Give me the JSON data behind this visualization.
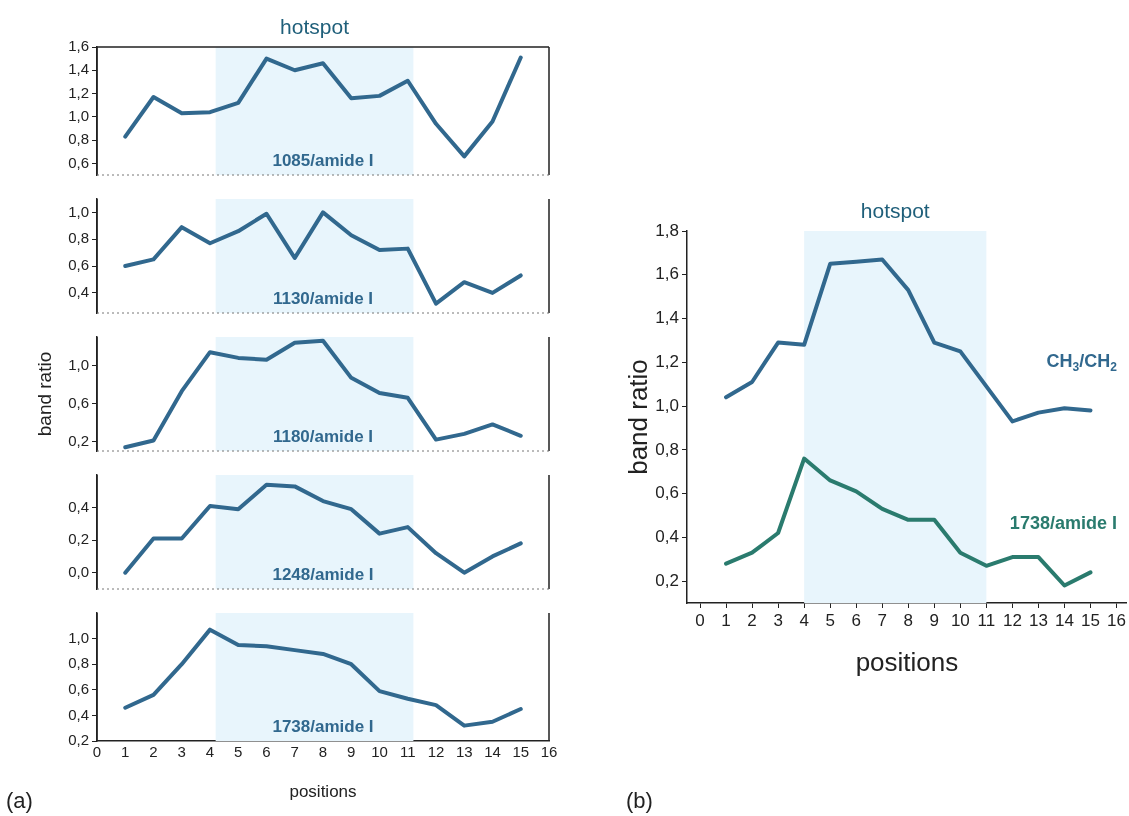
{
  "chart_data": [
    {
      "type": "line",
      "x": [
        1,
        2,
        3,
        4,
        5,
        6,
        7,
        8,
        9,
        10,
        11,
        12,
        13,
        14,
        15
      ],
      "series": [
        {
          "name": "1085/amide I",
          "color": "#31688e",
          "values": [
            0.83,
            1.17,
            1.03,
            1.04,
            1.12,
            1.5,
            1.4,
            1.46,
            1.16,
            1.18,
            1.31,
            0.94,
            0.66,
            0.96,
            1.51
          ]
        }
      ],
      "xlim": [
        0,
        16
      ],
      "ylim": [
        0.5,
        1.6
      ],
      "yticks": [
        {
          "value": 0.6,
          "label": "0,6"
        },
        {
          "value": 0.8,
          "label": "0,8"
        },
        {
          "value": 1.0,
          "label": "1,0"
        },
        {
          "value": 1.2,
          "label": "1,2"
        },
        {
          "value": 1.4,
          "label": "1,4"
        },
        {
          "value": 1.6,
          "label": "1,6"
        }
      ],
      "bands": [
        {
          "axis": "x",
          "from": 4.2,
          "to": 11.2,
          "label": "hotspot",
          "color": "#e8f5fc"
        }
      ],
      "tick_labels": "y"
    },
    {
      "type": "line",
      "x": [
        1,
        2,
        3,
        4,
        5,
        6,
        7,
        8,
        9,
        10,
        11,
        12,
        13,
        14,
        15
      ],
      "series": [
        {
          "name": "1130/amide I",
          "color": "#31688e",
          "values": [
            0.6,
            0.65,
            0.89,
            0.77,
            0.86,
            0.99,
            0.66,
            1.0,
            0.83,
            0.72,
            0.73,
            0.32,
            0.48,
            0.4,
            0.53
          ]
        }
      ],
      "xlim": [
        0,
        16
      ],
      "ylim": [
        0.25,
        1.1
      ],
      "yticks": [
        {
          "value": 0.4,
          "label": "0,4"
        },
        {
          "value": 0.6,
          "label": "0,6"
        },
        {
          "value": 0.8,
          "label": "0,8"
        },
        {
          "value": 1.0,
          "label": "1,0"
        }
      ],
      "bands": [
        {
          "axis": "x",
          "from": 4.2,
          "to": 11.2,
          "label": null,
          "color": "#e8f5fc"
        }
      ],
      "tick_labels": "y"
    },
    {
      "type": "line",
      "x": [
        1,
        2,
        3,
        4,
        5,
        6,
        7,
        8,
        9,
        10,
        11,
        12,
        13,
        14,
        15
      ],
      "ylabel": "band ratio",
      "series": [
        {
          "name": "1180/amide I",
          "color": "#31688e",
          "values": [
            0.14,
            0.21,
            0.73,
            1.14,
            1.08,
            1.06,
            1.24,
            1.26,
            0.87,
            0.71,
            0.66,
            0.22,
            0.28,
            0.38,
            0.26
          ]
        }
      ],
      "xlim": [
        0,
        16
      ],
      "ylim": [
        0.1,
        1.3
      ],
      "yticks": [
        {
          "value": 0.2,
          "label": "0,2"
        },
        {
          "value": 0.6,
          "label": "0,6"
        },
        {
          "value": 1.0,
          "label": "1,0"
        }
      ],
      "bands": [
        {
          "axis": "x",
          "from": 4.2,
          "to": 11.2,
          "label": null,
          "color": "#e8f5fc"
        }
      ],
      "tick_labels": "y"
    },
    {
      "type": "line",
      "x": [
        1,
        2,
        3,
        4,
        5,
        6,
        7,
        8,
        9,
        10,
        11,
        12,
        13,
        14,
        15
      ],
      "series": [
        {
          "name": "1248/amide I",
          "color": "#31688e",
          "values": [
            0.0,
            0.21,
            0.21,
            0.41,
            0.39,
            0.54,
            0.53,
            0.44,
            0.39,
            0.24,
            0.28,
            0.12,
            0.0,
            0.1,
            0.18
          ]
        }
      ],
      "xlim": [
        0,
        16
      ],
      "ylim": [
        -0.1,
        0.6
      ],
      "yticks": [
        {
          "value": 0.0,
          "label": "0,0"
        },
        {
          "value": 0.2,
          "label": "0,2"
        },
        {
          "value": 0.4,
          "label": "0,4"
        }
      ],
      "bands": [
        {
          "axis": "x",
          "from": 4.2,
          "to": 11.2,
          "label": null,
          "color": "#e8f5fc"
        }
      ],
      "tick_labels": "y"
    },
    {
      "type": "line",
      "x": [
        1,
        2,
        3,
        4,
        5,
        6,
        7,
        8,
        9,
        10,
        11,
        12,
        13,
        14,
        15
      ],
      "xlabel": "positions",
      "series": [
        {
          "name": "1738/amide I",
          "color": "#31688e",
          "values": [
            0.46,
            0.56,
            0.8,
            1.07,
            0.95,
            0.94,
            0.91,
            0.88,
            0.8,
            0.59,
            0.53,
            0.48,
            0.32,
            0.35,
            0.45
          ]
        }
      ],
      "xlim": [
        0,
        16
      ],
      "xticks": [
        0,
        1,
        2,
        3,
        4,
        5,
        6,
        7,
        8,
        9,
        10,
        11,
        12,
        13,
        14,
        15,
        16
      ],
      "ylim": [
        0.2,
        1.2
      ],
      "yticks": [
        {
          "value": 0.2,
          "label": "0,2"
        },
        {
          "value": 0.4,
          "label": "0,4"
        },
        {
          "value": 0.6,
          "label": "0,6"
        },
        {
          "value": 0.8,
          "label": "0,8"
        },
        {
          "value": 1.0,
          "label": "1,0"
        }
      ],
      "bands": [
        {
          "axis": "x",
          "from": 4.2,
          "to": 11.2,
          "label": null,
          "color": "#e8f5fc"
        }
      ],
      "annotations": [
        "(a)"
      ]
    },
    {
      "type": "line",
      "x": [
        1,
        2,
        3,
        4,
        5,
        6,
        7,
        8,
        9,
        10,
        11,
        12,
        13,
        14,
        15
      ],
      "xlabel": "positions",
      "ylabel": "band ratio",
      "series": [
        {
          "name": "CH$_{3}$/CH$_{2}$",
          "color": "#31688e",
          "values": [
            1.04,
            1.11,
            1.29,
            1.28,
            1.65,
            1.66,
            1.67,
            1.53,
            1.29,
            1.25,
            1.09,
            0.93,
            0.97,
            0.99,
            0.98
          ]
        },
        {
          "name": "1738/amide I",
          "color": "#2a7b6e",
          "values": [
            0.28,
            0.33,
            0.42,
            0.76,
            0.66,
            0.61,
            0.53,
            0.48,
            0.48,
            0.33,
            0.27,
            0.31,
            0.31,
            0.18,
            0.24
          ]
        }
      ],
      "xlim": [
        -0.5,
        16.4
      ],
      "xticks": [
        0,
        1,
        2,
        3,
        4,
        5,
        6,
        7,
        8,
        9,
        10,
        11,
        12,
        13,
        14,
        15,
        16
      ],
      "ylim": [
        0.1,
        1.8
      ],
      "yticks": [
        {
          "value": 0.2,
          "label": "0,2"
        },
        {
          "value": 0.4,
          "label": "0,4"
        },
        {
          "value": 0.6,
          "label": "0,6"
        },
        {
          "value": 0.8,
          "label": "0,8"
        },
        {
          "value": 1.0,
          "label": "1,0"
        },
        {
          "value": 1.2,
          "label": "1,2"
        },
        {
          "value": 1.4,
          "label": "1,4"
        },
        {
          "value": 1.6,
          "label": "1,6"
        },
        {
          "value": 1.8,
          "label": "1,8"
        }
      ],
      "bands": [
        {
          "axis": "x",
          "from": 4.0,
          "to": 11.0,
          "label": "hotspot",
          "color": "#e8f5fc"
        }
      ],
      "annotations": [
        "(b)"
      ]
    }
  ]
}
